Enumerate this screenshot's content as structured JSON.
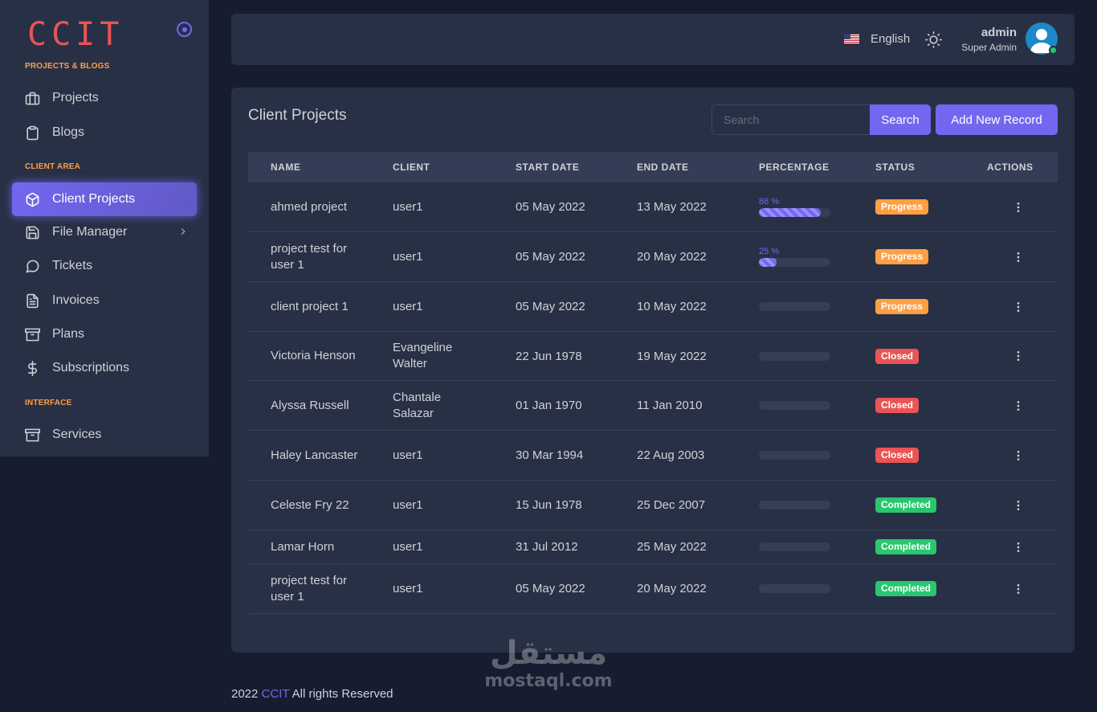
{
  "brand": "CCIT",
  "sidebar": {
    "sections": [
      {
        "label": "PROJECTS & BLOGS"
      },
      {
        "label": "CLIENT AREA"
      },
      {
        "label": "INTERFACE"
      }
    ],
    "items": [
      {
        "label": "Projects",
        "icon": "briefcase-icon"
      },
      {
        "label": "Blogs",
        "icon": "clipboard-icon"
      },
      {
        "label": "Client Projects",
        "icon": "box-icon",
        "active": true
      },
      {
        "label": "File Manager",
        "icon": "save-icon",
        "has_submenu": true
      },
      {
        "label": "Tickets",
        "icon": "message-circle-icon"
      },
      {
        "label": "Invoices",
        "icon": "file-text-icon"
      },
      {
        "label": "Plans",
        "icon": "archive-icon"
      },
      {
        "label": "Subscriptions",
        "icon": "dollar-sign-icon"
      },
      {
        "label": "Services",
        "icon": "archive-icon"
      }
    ]
  },
  "navbar": {
    "language": "English",
    "user_name": "admin",
    "user_role": "Super Admin"
  },
  "card": {
    "title": "Client Projects",
    "search_placeholder": "Search",
    "search_label": "Search",
    "add_label": "Add New Record"
  },
  "table": {
    "columns": [
      "NAME",
      "CLIENT",
      "START DATE",
      "END DATE",
      "PERCENTAGE",
      "STATUS",
      "ACTIONS"
    ],
    "rows": [
      {
        "name": "ahmed project",
        "client": "user1",
        "start": "05 May 2022",
        "end": "13 May 2022",
        "percent_label": "86 %",
        "percent": 86,
        "status": "Progress"
      },
      {
        "name": "project test for user 1",
        "client": "user1",
        "start": "05 May 2022",
        "end": "20 May 2022",
        "percent_label": "25 %",
        "percent": 25,
        "status": "Progress"
      },
      {
        "name": "client project 1",
        "client": "user1",
        "start": "05 May 2022",
        "end": "10 May 2022",
        "percent_label": "",
        "percent": 0,
        "status": "Progress"
      },
      {
        "name": "Victoria Henson",
        "client": "Evangeline Walter",
        "start": "22 Jun 1978",
        "end": "19 May 2022",
        "percent_label": "",
        "percent": 0,
        "status": "Closed"
      },
      {
        "name": "Alyssa Russell",
        "client": "Chantale Salazar",
        "start": "01 Jan 1970",
        "end": "11 Jan 2010",
        "percent_label": "",
        "percent": 0,
        "status": "Closed"
      },
      {
        "name": "Haley Lancaster",
        "client": "user1",
        "start": "30 Mar 1994",
        "end": "22 Aug 2003",
        "percent_label": "",
        "percent": 0,
        "status": "Closed"
      },
      {
        "name": "Celeste Fry 22",
        "client": "user1",
        "start": "15 Jun 1978",
        "end": "25 Dec 2007",
        "percent_label": "",
        "percent": 0,
        "status": "Completed"
      },
      {
        "name": "Lamar Horn",
        "client": "user1",
        "start": "31 Jul 2012",
        "end": "25 May 2022",
        "percent_label": "",
        "percent": 0,
        "status": "Completed"
      },
      {
        "name": "project test for user 1",
        "client": "user1",
        "start": "05 May 2022",
        "end": "20 May 2022",
        "percent_label": "",
        "percent": 0,
        "status": "Completed"
      }
    ]
  },
  "status_colors": {
    "Progress": "#ff9f43",
    "Closed": "#ea5455",
    "Completed": "#28c76f"
  },
  "footer": {
    "year": "2022",
    "brand": "CCIT",
    "text": "All rights Reserved"
  },
  "watermark": {
    "arabic": "مستقل",
    "latin": "mostaql.com"
  }
}
